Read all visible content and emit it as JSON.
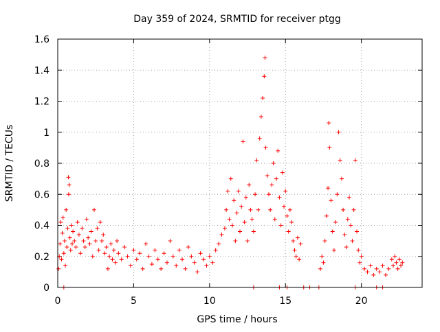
{
  "chart_data": {
    "type": "scatter",
    "title": "Day 359 of 2024, SRMTID for receiver ptgg",
    "xlabel": "GPS time / hours",
    "ylabel": "SRMTID / TECUs",
    "xlim": [
      0,
      24
    ],
    "ylim": [
      0,
      1.6
    ],
    "x_ticks": [
      0,
      5,
      10,
      15,
      20
    ],
    "x_tick_labels": [
      "0",
      "5",
      "10",
      "15",
      "20"
    ],
    "y_ticks": [
      0,
      0.2,
      0.4,
      0.6,
      0.8,
      1.0,
      1.2,
      1.4,
      1.6
    ],
    "y_tick_labels": [
      "0",
      "0.2",
      "0.4",
      "0.6",
      "0.8",
      "1",
      "1.2",
      "1.4",
      "1.6"
    ],
    "grid": true,
    "marker": "+",
    "color": "#ff0000",
    "series": [
      {
        "name": "SRMTID",
        "points": [
          [
            0.05,
            0.12
          ],
          [
            0.1,
            0.2
          ],
          [
            0.15,
            0.28
          ],
          [
            0.2,
            0.42
          ],
          [
            0.25,
            0.18
          ],
          [
            0.3,
            0.35
          ],
          [
            0.35,
            0.45
          ],
          [
            0.4,
            0.22
          ],
          [
            0.45,
            0.3
          ],
          [
            0.5,
            0.14
          ],
          [
            0.55,
            0.5
          ],
          [
            0.6,
            0.26
          ],
          [
            0.65,
            0.38
          ],
          [
            0.7,
            0.71
          ],
          [
            0.72,
            0.6
          ],
          [
            0.75,
            0.66
          ],
          [
            0.8,
            0.32
          ],
          [
            0.85,
            0.24
          ],
          [
            0.9,
            0.4
          ],
          [
            0.95,
            0.28
          ],
          [
            1.0,
            0.36
          ],
          [
            1.1,
            0.3
          ],
          [
            1.2,
            0.26
          ],
          [
            1.3,
            0.42
          ],
          [
            1.4,
            0.34
          ],
          [
            1.5,
            0.22
          ],
          [
            1.6,
            0.38
          ],
          [
            1.7,
            0.3
          ],
          [
            1.8,
            0.26
          ],
          [
            1.9,
            0.44
          ],
          [
            2.0,
            0.32
          ],
          [
            2.1,
            0.28
          ],
          [
            2.2,
            0.36
          ],
          [
            2.3,
            0.2
          ],
          [
            2.4,
            0.5
          ],
          [
            2.5,
            0.3
          ],
          [
            2.6,
            0.38
          ],
          [
            2.7,
            0.24
          ],
          [
            2.8,
            0.42
          ],
          [
            2.9,
            0.3
          ],
          [
            3.0,
            0.34
          ],
          [
            3.1,
            0.22
          ],
          [
            3.2,
            0.26
          ],
          [
            3.3,
            0.12
          ],
          [
            3.4,
            0.2
          ],
          [
            3.5,
            0.28
          ],
          [
            3.6,
            0.18
          ],
          [
            3.7,
            0.24
          ],
          [
            3.8,
            0.16
          ],
          [
            3.9,
            0.3
          ],
          [
            4.0,
            0.22
          ],
          [
            4.2,
            0.18
          ],
          [
            4.4,
            0.26
          ],
          [
            4.6,
            0.2
          ],
          [
            4.8,
            0.14
          ],
          [
            5.0,
            0.24
          ],
          [
            5.2,
            0.18
          ],
          [
            5.4,
            0.22
          ],
          [
            5.6,
            0.12
          ],
          [
            5.8,
            0.28
          ],
          [
            6.0,
            0.2
          ],
          [
            6.2,
            0.15
          ],
          [
            6.4,
            0.24
          ],
          [
            6.6,
            0.18
          ],
          [
            6.8,
            0.12
          ],
          [
            7.0,
            0.22
          ],
          [
            7.2,
            0.16
          ],
          [
            7.4,
            0.3
          ],
          [
            7.6,
            0.2
          ],
          [
            7.8,
            0.14
          ],
          [
            8.0,
            0.24
          ],
          [
            8.2,
            0.18
          ],
          [
            8.4,
            0.12
          ],
          [
            8.6,
            0.26
          ],
          [
            8.8,
            0.2
          ],
          [
            9.0,
            0.16
          ],
          [
            9.2,
            0.1
          ],
          [
            9.4,
            0.22
          ],
          [
            9.6,
            0.18
          ],
          [
            9.8,
            0.14
          ],
          [
            10.0,
            0.2
          ],
          [
            10.2,
            0.16
          ],
          [
            10.4,
            0.24
          ],
          [
            10.6,
            0.28
          ],
          [
            10.8,
            0.34
          ],
          [
            11.0,
            0.38
          ],
          [
            11.1,
            0.5
          ],
          [
            11.2,
            0.62
          ],
          [
            11.3,
            0.44
          ],
          [
            11.4,
            0.7
          ],
          [
            11.5,
            0.4
          ],
          [
            11.6,
            0.56
          ],
          [
            11.7,
            0.3
          ],
          [
            11.8,
            0.48
          ],
          [
            11.9,
            0.62
          ],
          [
            12.0,
            0.36
          ],
          [
            12.1,
            0.52
          ],
          [
            12.2,
            0.94
          ],
          [
            12.3,
            0.42
          ],
          [
            12.4,
            0.58
          ],
          [
            12.5,
            0.3
          ],
          [
            12.6,
            0.66
          ],
          [
            12.7,
            0.5
          ],
          [
            12.8,
            0.44
          ],
          [
            12.9,
            0.36
          ],
          [
            13.0,
            0.6
          ],
          [
            13.1,
            0.82
          ],
          [
            13.2,
            0.5
          ],
          [
            13.3,
            0.96
          ],
          [
            13.4,
            1.1
          ],
          [
            13.5,
            1.22
          ],
          [
            13.6,
            1.36
          ],
          [
            13.65,
            1.48
          ],
          [
            13.7,
            0.9
          ],
          [
            13.8,
            0.72
          ],
          [
            13.9,
            0.6
          ],
          [
            14.0,
            0.5
          ],
          [
            14.1,
            0.66
          ],
          [
            14.2,
            0.8
          ],
          [
            14.3,
            0.44
          ],
          [
            14.4,
            0.7
          ],
          [
            14.5,
            0.88
          ],
          [
            14.6,
            0.58
          ],
          [
            14.7,
            0.4
          ],
          [
            14.8,
            0.74
          ],
          [
            14.9,
            0.52
          ],
          [
            15.0,
            0.62
          ],
          [
            15.1,
            0.46
          ],
          [
            15.2,
            0.36
          ],
          [
            15.3,
            0.5
          ],
          [
            15.4,
            0.42
          ],
          [
            15.5,
            0.3
          ],
          [
            15.6,
            0.24
          ],
          [
            15.7,
            0.2
          ],
          [
            15.8,
            0.32
          ],
          [
            15.9,
            0.18
          ],
          [
            16.0,
            0.28
          ],
          [
            17.3,
            0.12
          ],
          [
            17.4,
            0.2
          ],
          [
            17.5,
            0.16
          ],
          [
            17.6,
            0.3
          ],
          [
            17.7,
            0.46
          ],
          [
            17.8,
            0.64
          ],
          [
            17.85,
            1.06
          ],
          [
            17.9,
            0.9
          ],
          [
            18.0,
            0.56
          ],
          [
            18.1,
            0.36
          ],
          [
            18.2,
            0.24
          ],
          [
            18.3,
            0.42
          ],
          [
            18.4,
            0.6
          ],
          [
            18.5,
            1.0
          ],
          [
            18.6,
            0.82
          ],
          [
            18.7,
            0.7
          ],
          [
            18.8,
            0.5
          ],
          [
            18.9,
            0.34
          ],
          [
            19.0,
            0.26
          ],
          [
            19.1,
            0.44
          ],
          [
            19.2,
            0.58
          ],
          [
            19.3,
            0.4
          ],
          [
            19.4,
            0.3
          ],
          [
            19.5,
            0.5
          ],
          [
            19.6,
            0.82
          ],
          [
            19.7,
            0.36
          ],
          [
            19.8,
            0.24
          ],
          [
            19.9,
            0.16
          ],
          [
            20.0,
            0.2
          ],
          [
            20.2,
            0.12
          ],
          [
            20.4,
            0.1
          ],
          [
            20.6,
            0.14
          ],
          [
            20.8,
            0.08
          ],
          [
            21.0,
            0.12
          ],
          [
            21.2,
            0.1
          ],
          [
            21.4,
            0.14
          ],
          [
            21.6,
            0.08
          ],
          [
            21.8,
            0.12
          ],
          [
            22.0,
            0.18
          ],
          [
            22.1,
            0.14
          ],
          [
            22.2,
            0.2
          ],
          [
            22.3,
            0.16
          ],
          [
            22.4,
            0.12
          ],
          [
            22.5,
            0.18
          ],
          [
            22.6,
            0.14
          ],
          [
            22.7,
            0.16
          ],
          [
            0.4,
            0
          ],
          [
            12.9,
            0
          ],
          [
            14.6,
            0
          ],
          [
            15.1,
            0
          ],
          [
            16.2,
            0
          ],
          [
            16.6,
            0
          ],
          [
            17.2,
            0
          ],
          [
            19.6,
            0
          ],
          [
            21.0,
            0
          ],
          [
            21.4,
            0
          ]
        ]
      }
    ]
  }
}
